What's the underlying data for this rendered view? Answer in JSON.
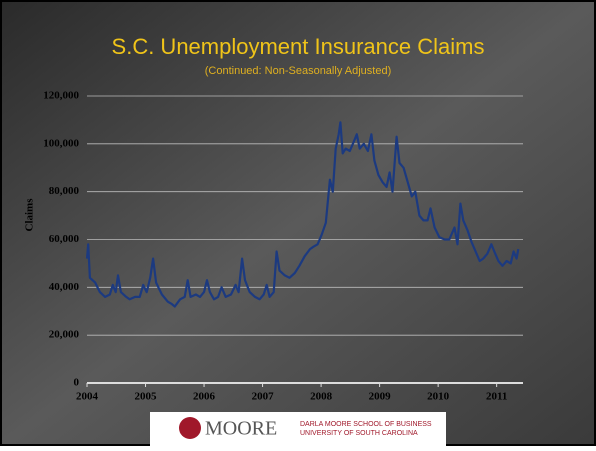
{
  "chart_data": {
    "type": "line",
    "title": "S.C. Unemployment Insurance Claims",
    "subtitle": "(Continued: Non-Seasonally Adjusted)",
    "y_label": "Claims",
    "x": [
      2004.0,
      2004.02,
      2004.05,
      2004.14,
      2004.22,
      2004.31,
      2004.39,
      2004.44,
      2004.49,
      2004.53,
      2004.58,
      2004.67,
      2004.73,
      2004.82,
      2004.9,
      2004.96,
      2005.02,
      2005.08,
      2005.13,
      2005.18,
      2005.28,
      2005.38,
      2005.45,
      2005.5,
      2005.59,
      2005.67,
      2005.72,
      2005.77,
      2005.86,
      2005.93,
      2006.0,
      2006.05,
      2006.1,
      2006.17,
      2006.24,
      2006.3,
      2006.37,
      2006.46,
      2006.54,
      2006.59,
      2006.65,
      2006.7,
      2006.78,
      2006.87,
      2006.95,
      2007.02,
      2007.07,
      2007.12,
      2007.19,
      2007.24,
      2007.29,
      2007.38,
      2007.46,
      2007.55,
      2007.63,
      2007.72,
      2007.81,
      2007.87,
      2007.94,
      2008.01,
      2008.08,
      2008.15,
      2008.2,
      2008.25,
      2008.3,
      2008.33,
      2008.37,
      2008.42,
      2008.49,
      2008.56,
      2008.61,
      2008.66,
      2008.73,
      2008.8,
      2008.86,
      2008.91,
      2008.98,
      2009.05,
      2009.12,
      2009.17,
      2009.22,
      2009.29,
      2009.34,
      2009.41,
      2009.48,
      2009.55,
      2009.61,
      2009.68,
      2009.75,
      2009.82,
      2009.87,
      2009.94,
      2010.02,
      2010.11,
      2010.19,
      2010.28,
      2010.33,
      2010.38,
      2010.43,
      2010.5,
      2010.57,
      2010.64,
      2010.71,
      2010.77,
      2010.84,
      2010.91,
      2010.96,
      2011.03,
      2011.1,
      2011.17,
      2011.24,
      2011.29,
      2011.34,
      2011.37
    ],
    "series": [
      {
        "name": "Claims",
        "color": "#1c3a80",
        "values": [
          52000,
          58000,
          44000,
          42000,
          38000,
          36000,
          37000,
          41000,
          38000,
          45000,
          38000,
          36000,
          35000,
          36000,
          36000,
          41000,
          38000,
          44000,
          52000,
          42000,
          37000,
          34000,
          33000,
          32000,
          35000,
          36000,
          43000,
          36000,
          37000,
          36000,
          38000,
          43000,
          38000,
          35000,
          36000,
          40000,
          36000,
          37000,
          41000,
          38000,
          52000,
          43000,
          38000,
          36000,
          35000,
          37000,
          41000,
          36000,
          38000,
          55000,
          47000,
          45000,
          44000,
          46000,
          49000,
          53000,
          56000,
          57000,
          58000,
          62000,
          67000,
          85000,
          80000,
          98000,
          104000,
          109000,
          96000,
          98000,
          97000,
          101000,
          104000,
          98000,
          100000,
          97000,
          104000,
          93000,
          87000,
          84000,
          82000,
          88000,
          80000,
          103000,
          92000,
          90000,
          84000,
          78000,
          80000,
          70000,
          68000,
          68000,
          73000,
          65000,
          61000,
          60000,
          60000,
          65000,
          58000,
          75000,
          68000,
          64000,
          59000,
          55000,
          51000,
          52000,
          54000,
          58000,
          55000,
          51000,
          49000,
          51000,
          50000,
          55000,
          52000,
          56000
        ]
      }
    ],
    "xlim": [
      2004,
      2011.45
    ],
    "xticks": [
      2004,
      2005,
      2006,
      2007,
      2008,
      2009,
      2010,
      2011
    ],
    "ylim": [
      0,
      120000
    ],
    "yticks": [
      0,
      {
        "value": 20000,
        "label": "20,000"
      },
      {
        "value": 40000,
        "label": "40,000"
      },
      {
        "value": 60000,
        "label": "60,000"
      },
      {
        "value": 80000,
        "label": "80,000"
      },
      {
        "value": 100000,
        "label": "100,000"
      },
      {
        "value": 120000,
        "label": "120,000"
      }
    ],
    "grid": true
  },
  "logo": {
    "name": "MOORE",
    "line1": "DARLA MOORE SCHOOL OF BUSINESS",
    "line2": "UNIVERSITY OF SOUTH CAROLINA"
  }
}
